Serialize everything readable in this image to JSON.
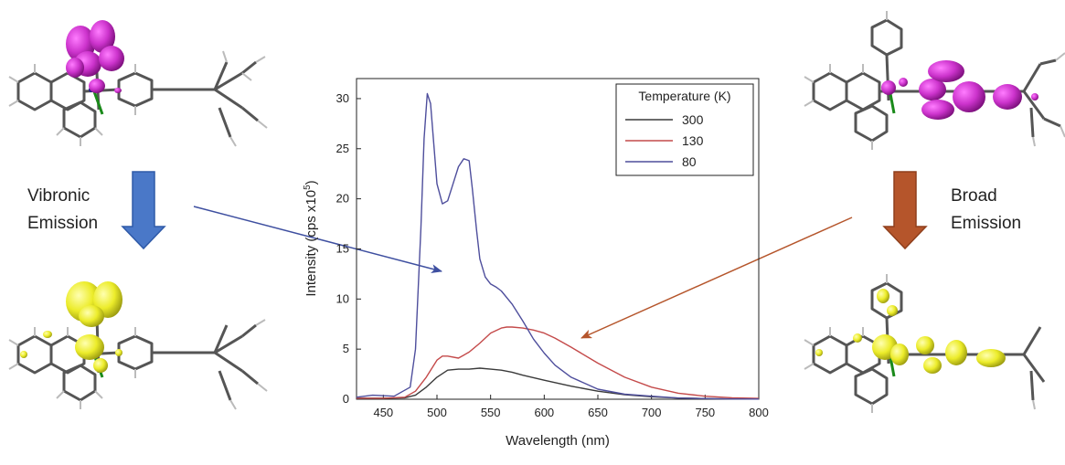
{
  "labels": {
    "left_line1": "Vibronic",
    "left_line2": "Emission",
    "right_line1": "Broad",
    "right_line2": "Emission"
  },
  "colors": {
    "left_arrow": "#4a78c8",
    "right_arrow": "#b5552b",
    "homo_lobe": "#cc33cc",
    "lumo_lobe": "#ecec2a",
    "callout_left": "#3e4fa0",
    "callout_right": "#b5552b"
  },
  "icons": [
    "molecule-orbital-image",
    "down-arrow-icon",
    "callout-arrow"
  ],
  "chart_data": {
    "type": "line",
    "xlabel": "Wavelength (nm)",
    "ylabel": "Intensity (cps x10",
    "ylabel_sup": "5",
    "ylabel_close": ")",
    "xlim": [
      425,
      800
    ],
    "ylim": [
      0,
      32
    ],
    "xticks": [
      450,
      500,
      550,
      600,
      650,
      700,
      750,
      800
    ],
    "yticks": [
      0,
      5,
      10,
      15,
      20,
      25,
      30
    ],
    "legend": {
      "title": "Temperature (K)",
      "position": "top-right"
    },
    "series": [
      {
        "name": "300",
        "color": "#3a3a3a",
        "x": [
          425,
          450,
          470,
          480,
          490,
          500,
          510,
          520,
          530,
          540,
          550,
          560,
          570,
          580,
          600,
          625,
          650,
          675,
          700,
          725,
          750,
          775,
          800
        ],
        "y": [
          0.1,
          0.1,
          0.15,
          0.4,
          1.2,
          2.2,
          2.9,
          3.0,
          3.0,
          3.1,
          3.0,
          2.9,
          2.7,
          2.4,
          1.9,
          1.3,
          0.8,
          0.45,
          0.25,
          0.12,
          0.06,
          0.03,
          0.02
        ]
      },
      {
        "name": "130",
        "color": "#c44a4a",
        "x": [
          425,
          450,
          470,
          480,
          490,
          500,
          505,
          510,
          520,
          530,
          540,
          550,
          560,
          565,
          570,
          580,
          590,
          600,
          610,
          625,
          650,
          675,
          700,
          725,
          750,
          775,
          800
        ],
        "y": [
          0.1,
          0.1,
          0.2,
          0.8,
          2.2,
          3.9,
          4.3,
          4.3,
          4.1,
          4.7,
          5.6,
          6.6,
          7.1,
          7.2,
          7.2,
          7.1,
          6.9,
          6.6,
          6.1,
          5.2,
          3.6,
          2.2,
          1.2,
          0.6,
          0.3,
          0.15,
          0.08
        ]
      },
      {
        "name": "80",
        "color": "#4e4e9c",
        "x": [
          425,
          440,
          460,
          475,
          480,
          485,
          488,
          491,
          494,
          497,
          500,
          505,
          510,
          515,
          520,
          525,
          530,
          533,
          537,
          540,
          545,
          550,
          555,
          560,
          570,
          580,
          590,
          600,
          610,
          625,
          650,
          675,
          700,
          725,
          750,
          775,
          800
        ],
        "y": [
          0.2,
          0.4,
          0.3,
          1.2,
          5.0,
          17.0,
          26.0,
          30.5,
          29.5,
          25.5,
          21.5,
          19.5,
          19.8,
          21.5,
          23.2,
          24.0,
          23.8,
          21.0,
          16.8,
          14.0,
          12.2,
          11.5,
          11.2,
          10.8,
          9.5,
          7.8,
          6.0,
          4.6,
          3.4,
          2.2,
          1.0,
          0.5,
          0.3,
          0.12,
          0.06,
          0.03,
          0.02
        ]
      }
    ]
  }
}
